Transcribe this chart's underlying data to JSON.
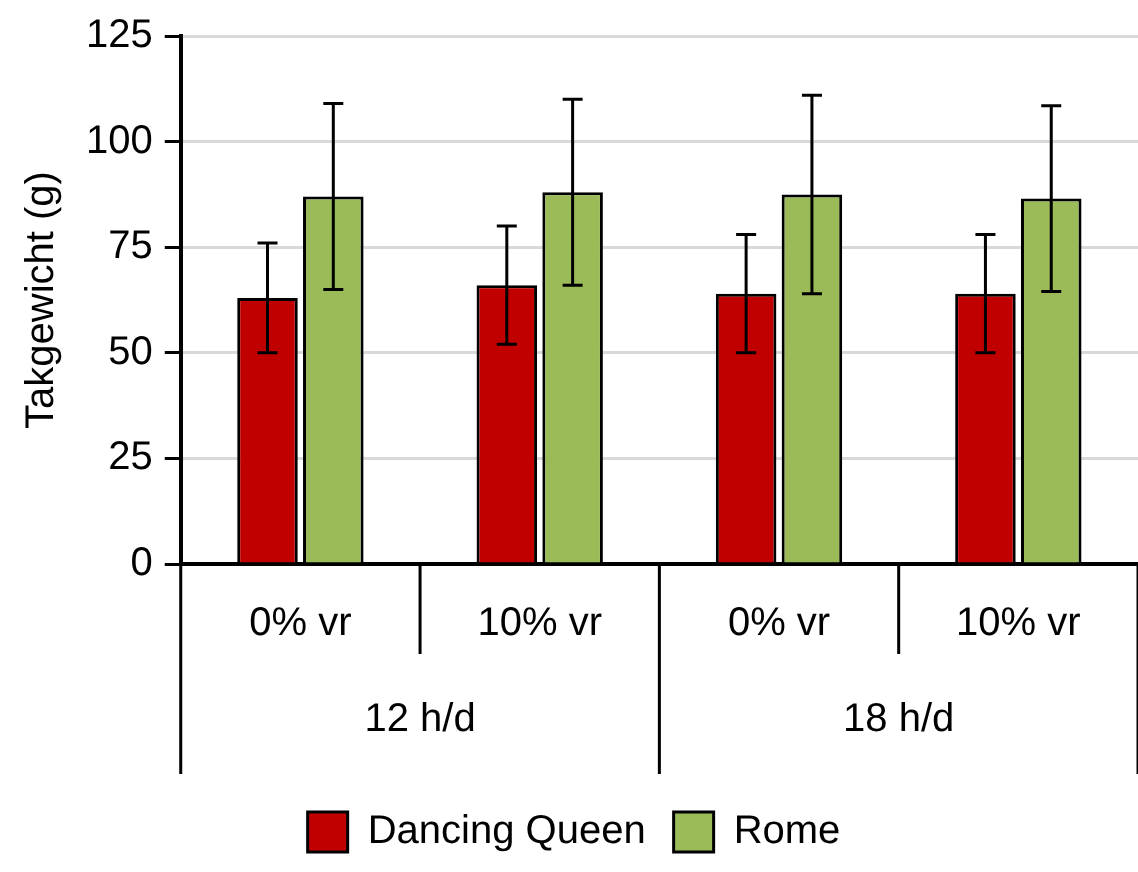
{
  "chart_data": {
    "type": "bar",
    "ylabel": "Takgewicht (g)",
    "categories": [
      "0% vr",
      "10% vr",
      "0% vr",
      "10% vr"
    ],
    "annotations": [
      "12 h/d",
      "18 h/d"
    ],
    "series": [
      {
        "name": "Dancing Queen",
        "color": "#c00000",
        "values": [
          63,
          66,
          64,
          64
        ],
        "errors": [
          13,
          14,
          14,
          14
        ]
      },
      {
        "name": "Rome",
        "color": "#9bbb59",
        "values": [
          87,
          88,
          87.5,
          86.5
        ],
        "errors": [
          22,
          22,
          23.5,
          22
        ]
      }
    ],
    "ylim": [
      0,
      125
    ],
    "yticks": [
      0,
      25,
      50,
      75,
      100,
      125
    ],
    "grid": "y",
    "legend": "bottom"
  }
}
